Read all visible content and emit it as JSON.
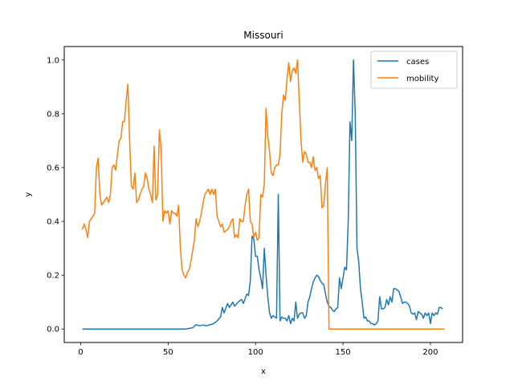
{
  "chart_data": {
    "type": "line",
    "title": "Missouri",
    "xlabel": "x",
    "ylabel": "y",
    "xlim": [
      -9.4,
      218.4
    ],
    "ylim": [
      -0.05,
      1.05
    ],
    "xticks": [
      0,
      50,
      100,
      150,
      200
    ],
    "yticks": [
      0.0,
      0.2,
      0.4,
      0.6,
      0.8,
      1.0
    ],
    "xtick_labels": [
      "0",
      "50",
      "100",
      "150",
      "200"
    ],
    "ytick_labels": [
      "0.0",
      "0.2",
      "0.4",
      "0.6",
      "0.8",
      "1.0"
    ],
    "grid": false,
    "legend_position": "top-right",
    "series": [
      {
        "name": "cases",
        "color": "#1f77b4",
        "points": [
          [
            1,
            0
          ],
          [
            20,
            0
          ],
          [
            40,
            0
          ],
          [
            60,
            0
          ],
          [
            64,
            0.005
          ],
          [
            66,
            0.016
          ],
          [
            68,
            0.012
          ],
          [
            70,
            0.015
          ],
          [
            72,
            0.012
          ],
          [
            74,
            0.016
          ],
          [
            76,
            0.02
          ],
          [
            78,
            0.03
          ],
          [
            80,
            0.045
          ],
          [
            81,
            0.08
          ],
          [
            82,
            0.06
          ],
          [
            84,
            0.095
          ],
          [
            85,
            0.08
          ],
          [
            86,
            0.09
          ],
          [
            87,
            0.1
          ],
          [
            88,
            0.085
          ],
          [
            90,
            0.1
          ],
          [
            92,
            0.11
          ],
          [
            93,
            0.095
          ],
          [
            95,
            0.13
          ],
          [
            96,
            0.125
          ],
          [
            97,
            0.18
          ],
          [
            98,
            0.345
          ],
          [
            99,
            0.335
          ],
          [
            100,
            0.27
          ],
          [
            101,
            0.27
          ],
          [
            102,
            0.22
          ],
          [
            103,
            0.19
          ],
          [
            104,
            0.15
          ],
          [
            105,
            0.3
          ],
          [
            106,
            0.2
          ],
          [
            107,
            0.12
          ],
          [
            108,
            0.06
          ],
          [
            109,
            0.04
          ],
          [
            110,
            0.05
          ],
          [
            112,
            0.04
          ],
          [
            113,
            0.5
          ],
          [
            114,
            0.03
          ],
          [
            115,
            0.045
          ],
          [
            116,
            0.04
          ],
          [
            117,
            0.04
          ],
          [
            118,
            0.03
          ],
          [
            119,
            0.05
          ],
          [
            120,
            0.02
          ],
          [
            121,
            0.04
          ],
          [
            122,
            0.03
          ],
          [
            123,
            0.1
          ],
          [
            124,
            0.04
          ],
          [
            125,
            0.055
          ],
          [
            126,
            0.06
          ],
          [
            127,
            0.06
          ],
          [
            128,
            0.04
          ],
          [
            129,
            0.05
          ],
          [
            130,
            0.1
          ],
          [
            131,
            0.12
          ],
          [
            132,
            0.15
          ],
          [
            133,
            0.175
          ],
          [
            134,
            0.19
          ],
          [
            135,
            0.2
          ],
          [
            136,
            0.195
          ],
          [
            137,
            0.18
          ],
          [
            138,
            0.17
          ],
          [
            139,
            0.165
          ],
          [
            140,
            0.13
          ],
          [
            141,
            0.1
          ],
          [
            142,
            0.085
          ],
          [
            143,
            0.08
          ],
          [
            144,
            0.07
          ],
          [
            145,
            0.065
          ],
          [
            146,
            0.075
          ],
          [
            147,
            0.08
          ],
          [
            148,
            0.19
          ],
          [
            149,
            0.15
          ],
          [
            150,
            0.19
          ],
          [
            151,
            0.23
          ],
          [
            152,
            0.22
          ],
          [
            153,
            0.4
          ],
          [
            154,
            0.77
          ],
          [
            155,
            0.7
          ],
          [
            156,
            1.0
          ],
          [
            157,
            0.8
          ],
          [
            158,
            0.3
          ],
          [
            159,
            0.25
          ],
          [
            160,
            0.15
          ],
          [
            161,
            0.1
          ],
          [
            162,
            0.04
          ],
          [
            163,
            0.045
          ],
          [
            164,
            0.03
          ],
          [
            165,
            0.03
          ],
          [
            166,
            0.02
          ],
          [
            167,
            0.02
          ],
          [
            168,
            0.015
          ],
          [
            169,
            0.02
          ],
          [
            170,
            0.03
          ],
          [
            171,
            0.12
          ],
          [
            172,
            0.075
          ],
          [
            173,
            0.075
          ],
          [
            174,
            0.08
          ],
          [
            175,
            0.11
          ],
          [
            176,
            0.09
          ],
          [
            177,
            0.12
          ],
          [
            178,
            0.1
          ],
          [
            179,
            0.15
          ],
          [
            180,
            0.15
          ],
          [
            181,
            0.145
          ],
          [
            182,
            0.14
          ],
          [
            183,
            0.12
          ],
          [
            184,
            0.095
          ],
          [
            185,
            0.1
          ],
          [
            186,
            0.1
          ],
          [
            187,
            0.095
          ],
          [
            188,
            0.085
          ],
          [
            189,
            0.06
          ],
          [
            190,
            0.055
          ],
          [
            191,
            0.06
          ],
          [
            192,
            0.035
          ],
          [
            193,
            0.065
          ],
          [
            194,
            0.06
          ],
          [
            195,
            0.055
          ],
          [
            196,
            0.04
          ],
          [
            197,
            0.06
          ],
          [
            198,
            0.05
          ],
          [
            199,
            0.06
          ],
          [
            200,
            0.02
          ],
          [
            201,
            0.06
          ],
          [
            202,
            0.05
          ],
          [
            203,
            0.06
          ],
          [
            204,
            0.055
          ],
          [
            205,
            0.08
          ],
          [
            206,
            0.08
          ],
          [
            207,
            0.075
          ]
        ]
      },
      {
        "name": "mobility",
        "color": "#ff7f0e",
        "points": [
          [
            1,
            0.37
          ],
          [
            2,
            0.39
          ],
          [
            3,
            0.37
          ],
          [
            4,
            0.34
          ],
          [
            5,
            0.4
          ],
          [
            6,
            0.41
          ],
          [
            7,
            0.42
          ],
          [
            8,
            0.43
          ],
          [
            9,
            0.6
          ],
          [
            10,
            0.635
          ],
          [
            11,
            0.5
          ],
          [
            12,
            0.46
          ],
          [
            13,
            0.47
          ],
          [
            14,
            0.48
          ],
          [
            15,
            0.49
          ],
          [
            16,
            0.47
          ],
          [
            17,
            0.5
          ],
          [
            18,
            0.6
          ],
          [
            19,
            0.61
          ],
          [
            20,
            0.59
          ],
          [
            21,
            0.65
          ],
          [
            22,
            0.7
          ],
          [
            23,
            0.71
          ],
          [
            24,
            0.77
          ],
          [
            25,
            0.77
          ],
          [
            26,
            0.85
          ],
          [
            27,
            0.91
          ],
          [
            28,
            0.7
          ],
          [
            29,
            0.53
          ],
          [
            30,
            0.52
          ],
          [
            31,
            0.58
          ],
          [
            32,
            0.47
          ],
          [
            33,
            0.48
          ],
          [
            34,
            0.5
          ],
          [
            35,
            0.52
          ],
          [
            36,
            0.53
          ],
          [
            37,
            0.58
          ],
          [
            38,
            0.56
          ],
          [
            39,
            0.52
          ],
          [
            40,
            0.5
          ],
          [
            41,
            0.47
          ],
          [
            42,
            0.68
          ],
          [
            43,
            0.48
          ],
          [
            44,
            0.5
          ],
          [
            45,
            0.74
          ],
          [
            46,
            0.67
          ],
          [
            47,
            0.4
          ],
          [
            48,
            0.44
          ],
          [
            49,
            0.43
          ],
          [
            50,
            0.44
          ],
          [
            51,
            0.39
          ],
          [
            52,
            0.44
          ],
          [
            53,
            0.43
          ],
          [
            54,
            0.43
          ],
          [
            55,
            0.42
          ],
          [
            56,
            0.46
          ],
          [
            57,
            0.3
          ],
          [
            58,
            0.22
          ],
          [
            59,
            0.2
          ],
          [
            60,
            0.19
          ],
          [
            61,
            0.21
          ],
          [
            62,
            0.22
          ],
          [
            63,
            0.25
          ],
          [
            64,
            0.29
          ],
          [
            65,
            0.33
          ],
          [
            66,
            0.41
          ],
          [
            67,
            0.38
          ],
          [
            68,
            0.4
          ],
          [
            69,
            0.43
          ],
          [
            70,
            0.47
          ],
          [
            71,
            0.5
          ],
          [
            72,
            0.51
          ],
          [
            73,
            0.52
          ],
          [
            74,
            0.5
          ],
          [
            75,
            0.52
          ],
          [
            76,
            0.5
          ],
          [
            77,
            0.52
          ],
          [
            78,
            0.42
          ],
          [
            79,
            0.4
          ],
          [
            80,
            0.38
          ],
          [
            81,
            0.39
          ],
          [
            82,
            0.36
          ],
          [
            83,
            0.365
          ],
          [
            84,
            0.37
          ],
          [
            85,
            0.38
          ],
          [
            86,
            0.4
          ],
          [
            87,
            0.41
          ],
          [
            88,
            0.34
          ],
          [
            89,
            0.35
          ],
          [
            90,
            0.34
          ],
          [
            91,
            0.41
          ],
          [
            92,
            0.4
          ],
          [
            93,
            0.4
          ],
          [
            94,
            0.46
          ],
          [
            95,
            0.5
          ],
          [
            96,
            0.52
          ],
          [
            97,
            0.4
          ],
          [
            98,
            0.39
          ],
          [
            99,
            0.34
          ],
          [
            100,
            0.36
          ],
          [
            101,
            0.33
          ],
          [
            102,
            0.34
          ],
          [
            103,
            0.5
          ],
          [
            104,
            0.49
          ],
          [
            105,
            0.54
          ],
          [
            106,
            0.82
          ],
          [
            107,
            0.72
          ],
          [
            108,
            0.66
          ],
          [
            109,
            0.58
          ],
          [
            110,
            0.57
          ],
          [
            111,
            0.6
          ],
          [
            112,
            0.61
          ],
          [
            113,
            0.61
          ],
          [
            114,
            0.65
          ],
          [
            115,
            0.8
          ],
          [
            116,
            0.87
          ],
          [
            117,
            0.85
          ],
          [
            118,
            0.93
          ],
          [
            119,
            0.99
          ],
          [
            120,
            0.92
          ],
          [
            121,
            0.96
          ],
          [
            122,
            0.97
          ],
          [
            123,
            0.95
          ],
          [
            124,
            1.0
          ],
          [
            125,
            0.85
          ],
          [
            126,
            0.7
          ],
          [
            127,
            0.62
          ],
          [
            128,
            0.66
          ],
          [
            129,
            0.65
          ],
          [
            130,
            0.62
          ],
          [
            131,
            0.62
          ],
          [
            132,
            0.6
          ],
          [
            133,
            0.64
          ],
          [
            134,
            0.59
          ],
          [
            135,
            0.6
          ],
          [
            136,
            0.56
          ],
          [
            137,
            0.57
          ],
          [
            138,
            0.45
          ],
          [
            139,
            0.46
          ],
          [
            140,
            0.54
          ],
          [
            141,
            0.6
          ],
          [
            142,
            0.0
          ],
          [
            150,
            0.0
          ],
          [
            170,
            0.0
          ],
          [
            190,
            0.0
          ],
          [
            208,
            0.0
          ]
        ]
      }
    ]
  }
}
